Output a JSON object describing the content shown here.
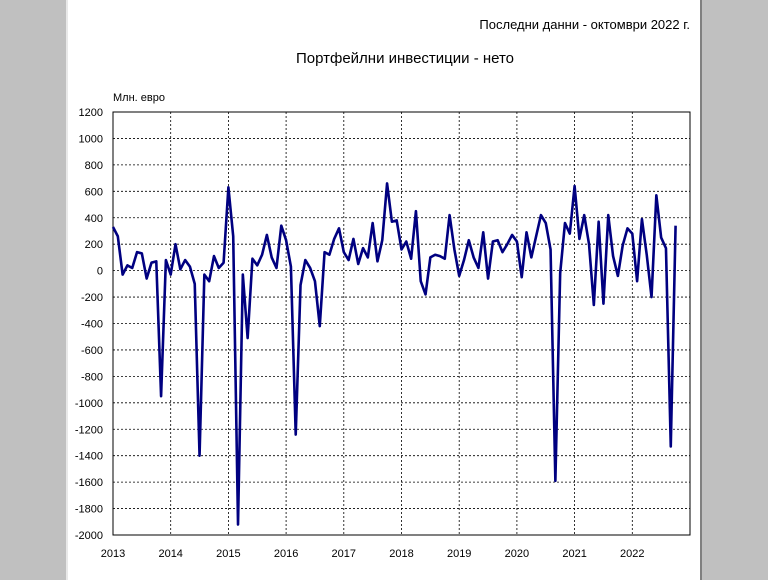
{
  "chart_data": {
    "type": "line",
    "title": "Портфейлни инвестиции - нето",
    "note": "Последни данни - октомври 2022 г.",
    "ylabel": "Млн. евро",
    "xlabel": "",
    "ylim": [
      -2000,
      1200
    ],
    "yticks": [
      1200,
      1000,
      800,
      600,
      400,
      200,
      0,
      -200,
      -400,
      -600,
      -800,
      -1000,
      -1200,
      -1400,
      -1600,
      -1800,
      -2000
    ],
    "year_labels": [
      "2013",
      "2014",
      "2015",
      "2016",
      "2017",
      "2018",
      "2019",
      "2020",
      "2021",
      "2022"
    ],
    "grid": true,
    "line_color": "#000080",
    "period": "2013-01 to 2022-10, monthly",
    "series": [
      {
        "values": [
          330,
          260,
          -30,
          40,
          20,
          140,
          130,
          -60,
          60,
          70,
          -950,
          80,
          -30,
          200,
          10,
          80,
          30,
          -100,
          -1400,
          -30,
          -80,
          110,
          20,
          60,
          630,
          260,
          -1920,
          -30,
          -510,
          90,
          40,
          120,
          270,
          100,
          20,
          340,
          230,
          30,
          -1240,
          -110,
          80,
          20,
          -80,
          -420,
          140,
          120,
          240,
          320,
          140,
          80,
          240,
          50,
          170,
          100,
          360,
          70,
          230,
          660,
          370,
          380,
          160,
          220,
          90,
          450,
          -80,
          -180,
          100,
          120,
          110,
          90,
          420,
          160,
          -40,
          80,
          230,
          100,
          20,
          290,
          -60,
          220,
          230,
          140,
          200,
          270,
          220,
          -50,
          290,
          100,
          260,
          420,
          360,
          160,
          -1590,
          -20,
          360,
          280,
          640,
          240,
          420,
          200,
          -260,
          370,
          -250,
          420,
          110,
          -40,
          190,
          320,
          280,
          -80,
          390,
          120,
          -200,
          570,
          250,
          170,
          -1330,
          340
        ]
      }
    ]
  }
}
